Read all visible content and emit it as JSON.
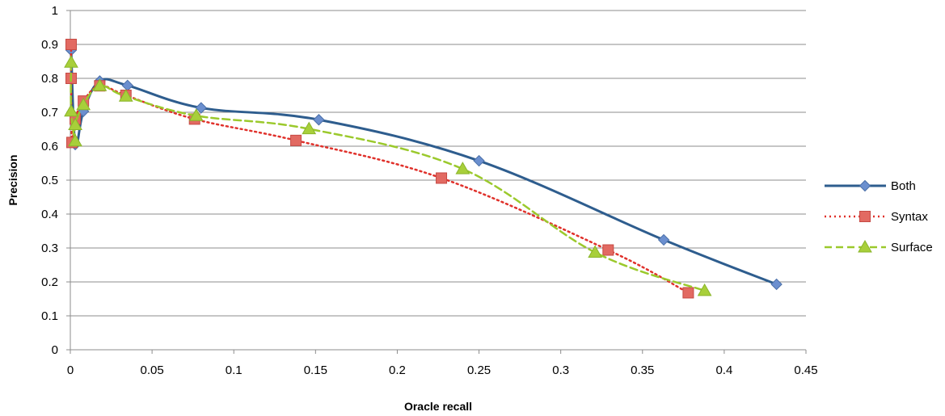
{
  "chart_data": {
    "type": "line",
    "title": "",
    "xlabel": "Oracle recall",
    "ylabel": "Precision",
    "xlim": [
      0,
      0.45
    ],
    "ylim": [
      0,
      1
    ],
    "x_ticks": [
      "0",
      "0.05",
      "0.1",
      "0.15",
      "0.2",
      "0.25",
      "0.3",
      "0.35",
      "0.4",
      "0.45"
    ],
    "y_ticks": [
      "0",
      "0.1",
      "0.2",
      "0.3",
      "0.4",
      "0.5",
      "0.6",
      "0.7",
      "0.8",
      "0.9",
      "1"
    ],
    "grid": "horizontal",
    "legend_position": "right",
    "series": [
      {
        "name": "Both",
        "color": "#2E5D8E",
        "marker_color": "#6B8FCF",
        "marker": "diamond",
        "line_style": "solid",
        "points": [
          [
            0.0005,
            0.883
          ],
          [
            0.003,
            0.605
          ],
          [
            0.008,
            0.703
          ],
          [
            0.018,
            0.792
          ],
          [
            0.035,
            0.779
          ],
          [
            0.08,
            0.713
          ],
          [
            0.152,
            0.678
          ],
          [
            0.25,
            0.557
          ],
          [
            0.363,
            0.324
          ],
          [
            0.432,
            0.193
          ]
        ]
      },
      {
        "name": "Syntax",
        "color": "#E0312B",
        "marker_color": "#E26A62",
        "marker": "square",
        "line_style": "dotted",
        "points": [
          [
            0.0005,
            0.9
          ],
          [
            0.0005,
            0.8
          ],
          [
            0.001,
            0.611
          ],
          [
            0.003,
            0.68
          ],
          [
            0.008,
            0.733
          ],
          [
            0.018,
            0.778
          ],
          [
            0.034,
            0.75
          ],
          [
            0.076,
            0.68
          ],
          [
            0.138,
            0.617
          ],
          [
            0.227,
            0.506
          ],
          [
            0.329,
            0.294
          ],
          [
            0.378,
            0.168
          ]
        ]
      },
      {
        "name": "Surface",
        "color": "#9BC92C",
        "marker_color": "#A8CF3A",
        "marker": "triangle",
        "line_style": "dashed",
        "points": [
          [
            0.0005,
            0.847
          ],
          [
            0.0005,
            0.703
          ],
          [
            0.003,
            0.615
          ],
          [
            0.003,
            0.663
          ],
          [
            0.008,
            0.722
          ],
          [
            0.018,
            0.778
          ],
          [
            0.034,
            0.747
          ],
          [
            0.077,
            0.69
          ],
          [
            0.146,
            0.651
          ],
          [
            0.24,
            0.533
          ],
          [
            0.321,
            0.287
          ],
          [
            0.388,
            0.174
          ]
        ]
      }
    ]
  }
}
